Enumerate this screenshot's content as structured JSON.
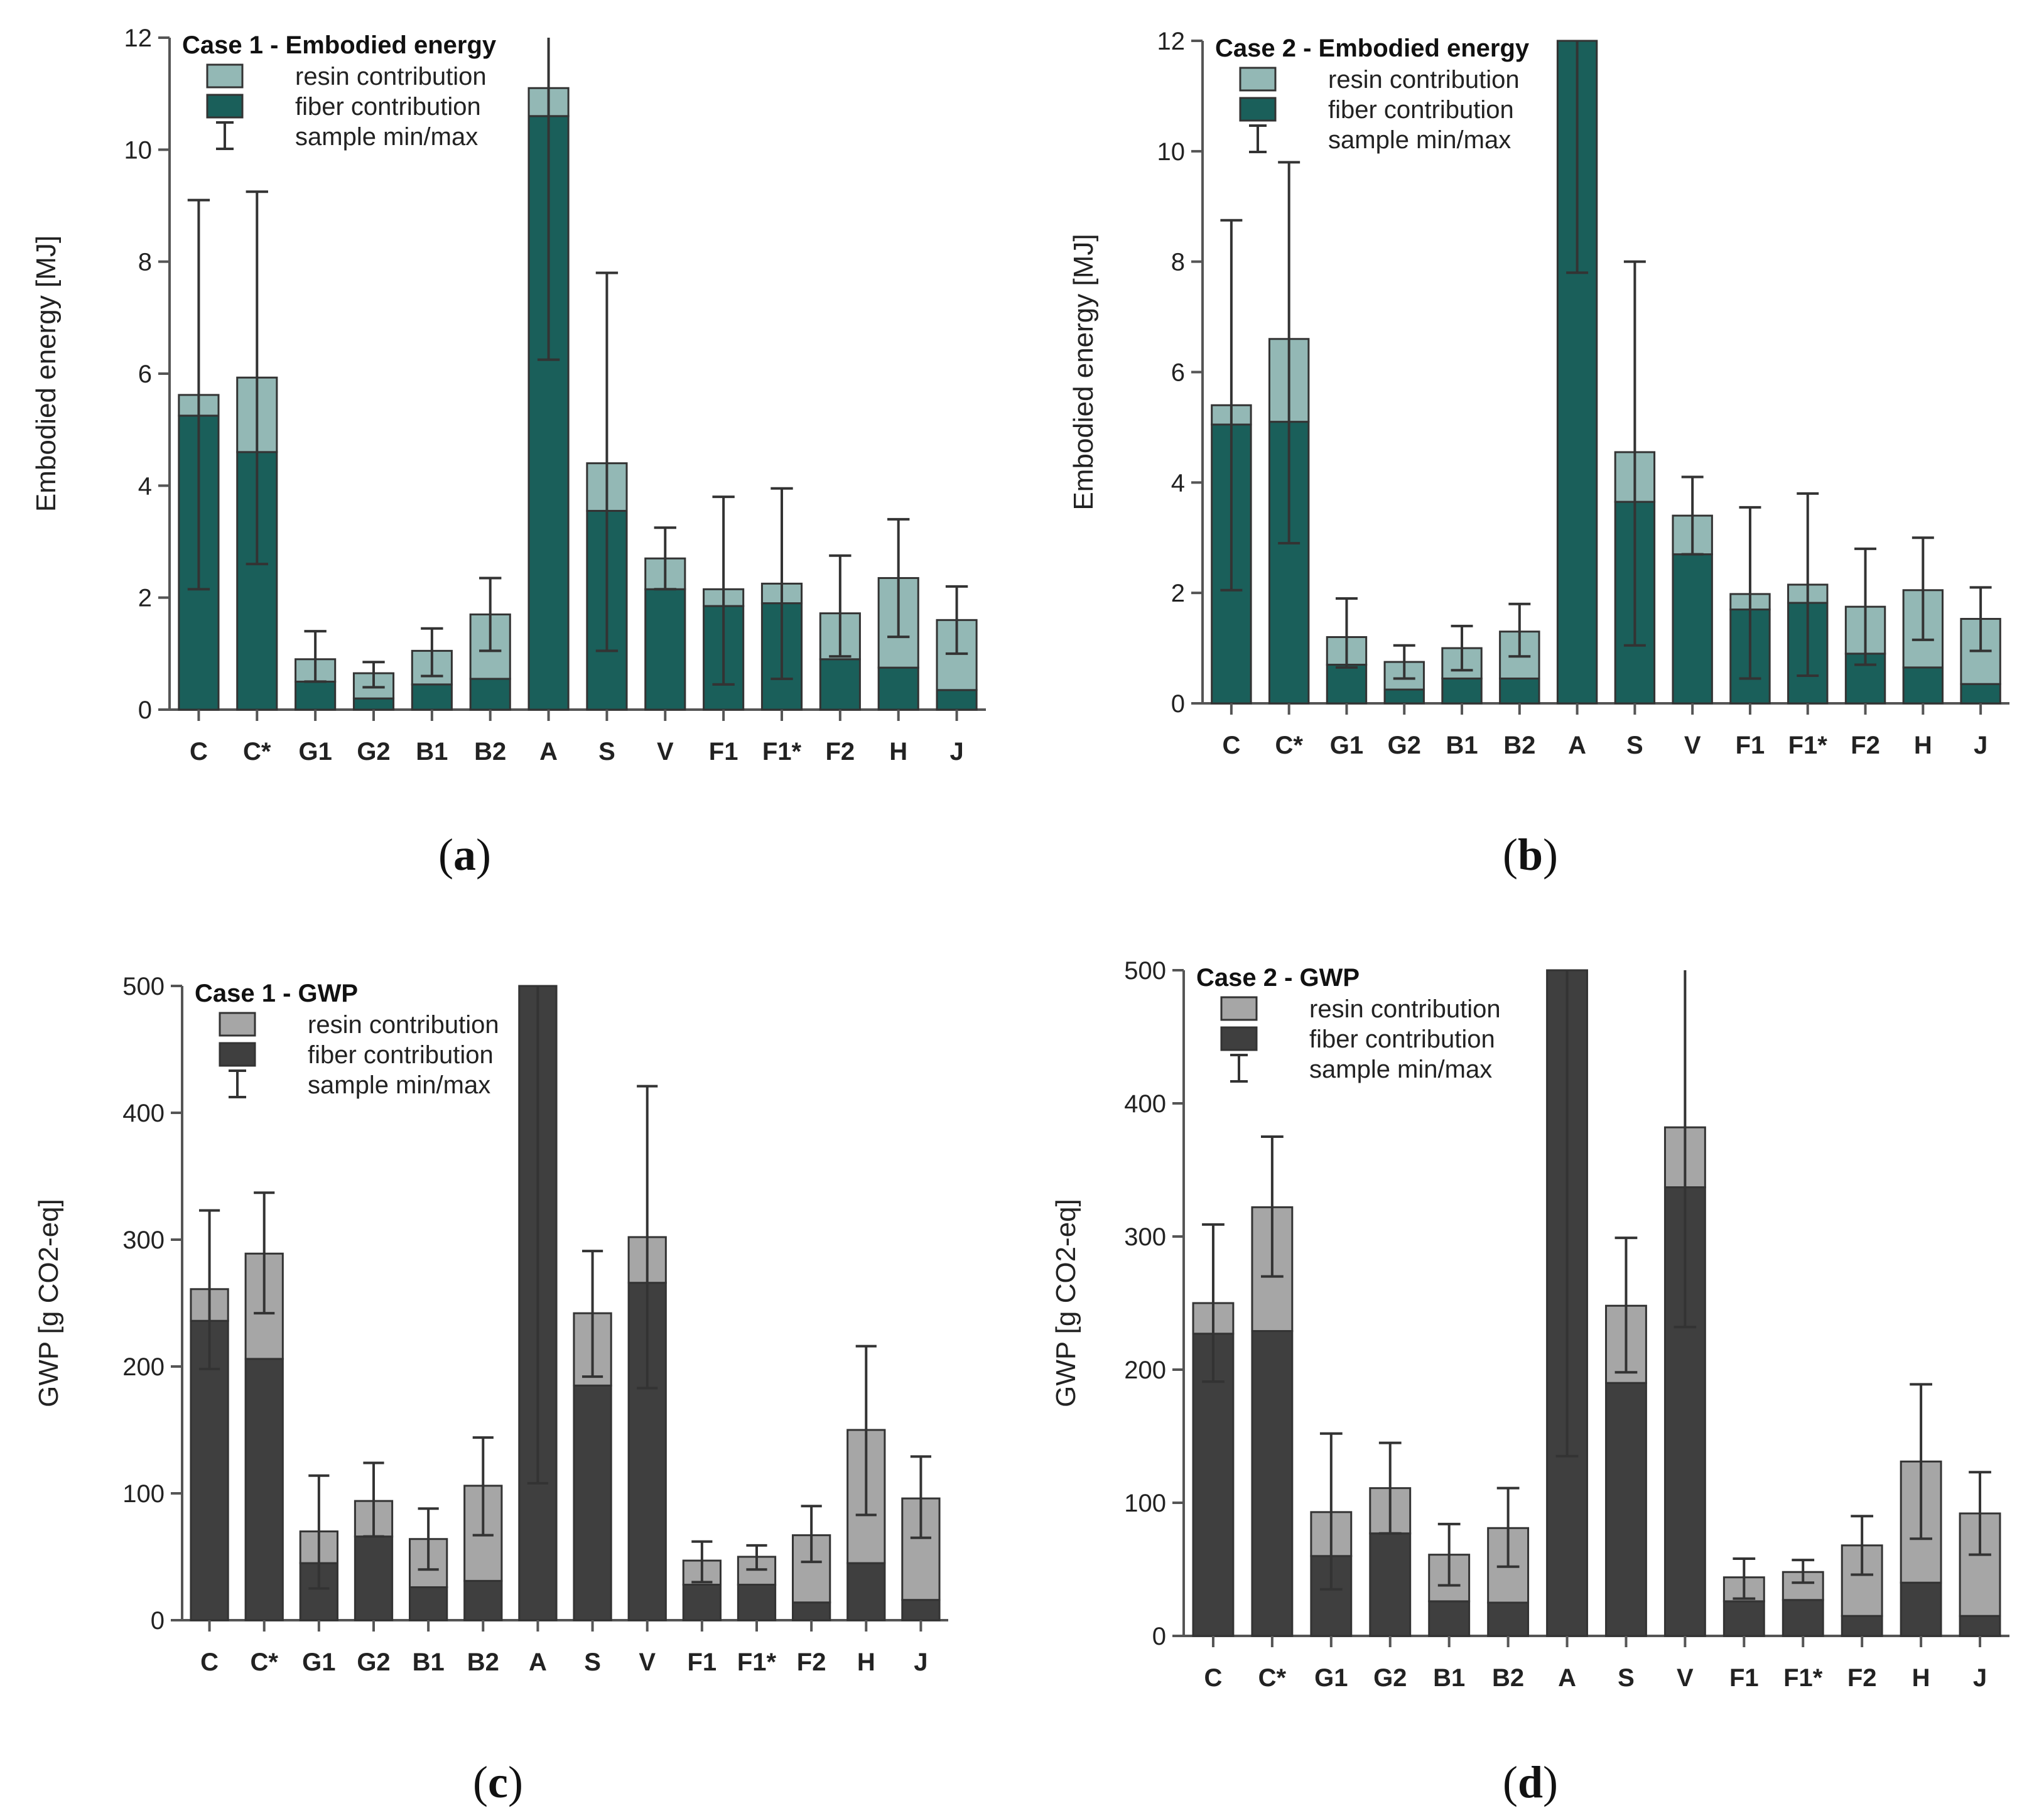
{
  "chart_data": [
    {
      "type": "bar",
      "stacked": true,
      "panel": "a",
      "legend_title": "Case 1 - Embodied energy",
      "ylabel": "Embodied energy [MJ]",
      "xlabel": "",
      "ylim": [
        0,
        12
      ],
      "yticks": [
        0,
        2,
        4,
        6,
        8,
        10,
        12
      ],
      "categories": [
        "C",
        "C*",
        "G1",
        "G2",
        "B1",
        "B2",
        "A",
        "S",
        "V",
        "F1",
        "F1*",
        "F2",
        "H",
        "J"
      ],
      "series": [
        {
          "name": "fiber contribution",
          "color": "#1a5f5a",
          "values": [
            5.25,
            4.6,
            0.5,
            0.2,
            0.45,
            0.55,
            10.6,
            3.55,
            2.15,
            1.85,
            1.9,
            0.9,
            0.75,
            0.35
          ]
        },
        {
          "name": "resin contribution",
          "color": "#93b8b5",
          "values": [
            0.37,
            1.33,
            0.4,
            0.45,
            0.6,
            1.15,
            0.5,
            0.85,
            0.55,
            0.3,
            0.35,
            0.82,
            1.6,
            1.25
          ]
        }
      ],
      "error_min": [
        2.15,
        2.6,
        0.5,
        0.4,
        0.6,
        1.05,
        6.25,
        1.05,
        2.15,
        0.45,
        0.55,
        0.95,
        1.3,
        1.0
      ],
      "error_max": [
        9.1,
        9.25,
        1.4,
        0.85,
        1.45,
        2.35,
        12.0,
        7.8,
        3.25,
        3.8,
        3.95,
        2.75,
        3.4,
        2.2
      ],
      "error_label": "sample min/max",
      "legend_position": "top-left",
      "grid": false
    },
    {
      "type": "bar",
      "stacked": true,
      "panel": "b",
      "legend_title": "Case 2 - Embodied energy",
      "ylabel": "Embodied energy [MJ]",
      "xlabel": "",
      "ylim": [
        0,
        12
      ],
      "yticks": [
        0,
        2,
        4,
        6,
        8,
        10,
        12
      ],
      "categories": [
        "C",
        "C*",
        "G1",
        "G2",
        "B1",
        "B2",
        "A",
        "S",
        "V",
        "F1",
        "F1*",
        "F2",
        "H",
        "J"
      ],
      "series": [
        {
          "name": "fiber contribution",
          "color": "#1a5f5a",
          "values": [
            5.05,
            5.1,
            0.7,
            0.25,
            0.45,
            0.45,
            12.0,
            3.65,
            2.7,
            1.7,
            1.82,
            0.9,
            0.65,
            0.35
          ]
        },
        {
          "name": "resin contribution",
          "color": "#93b8b5",
          "values": [
            0.35,
            1.5,
            0.5,
            0.5,
            0.55,
            0.85,
            0.0,
            0.9,
            0.7,
            0.28,
            0.33,
            0.85,
            1.4,
            1.18
          ]
        }
      ],
      "error_min": [
        2.05,
        2.9,
        0.65,
        0.45,
        0.6,
        0.85,
        7.8,
        1.05,
        2.7,
        0.45,
        0.5,
        0.7,
        1.15,
        0.95
      ],
      "error_max": [
        8.75,
        9.8,
        1.9,
        1.05,
        1.4,
        1.8,
        12.0,
        8.0,
        4.1,
        3.55,
        3.8,
        2.8,
        3.0,
        2.1
      ],
      "error_label": "sample min/max",
      "legend_position": "top-left",
      "grid": false
    },
    {
      "type": "bar",
      "stacked": true,
      "panel": "c",
      "legend_title": "Case 1 - GWP",
      "ylabel": "GWP [g CO2-eq]",
      "xlabel": "",
      "ylim": [
        0,
        500
      ],
      "yticks": [
        0,
        100,
        200,
        300,
        400,
        500
      ],
      "categories": [
        "C",
        "C*",
        "G1",
        "G2",
        "B1",
        "B2",
        "A",
        "S",
        "V",
        "F1",
        "F1*",
        "F2",
        "H",
        "J"
      ],
      "series": [
        {
          "name": "fiber contribution",
          "color": "#3f3f3f",
          "values": [
            236,
            206,
            45,
            66,
            26,
            31,
            500,
            185,
            266,
            28,
            28,
            14,
            45,
            16
          ]
        },
        {
          "name": "resin contribution",
          "color": "#a6a6a6",
          "values": [
            25,
            83,
            25,
            28,
            38,
            75,
            0,
            57,
            36,
            19,
            22,
            53,
            105,
            80
          ]
        }
      ],
      "error_min": [
        198,
        242,
        25,
        66,
        40,
        67,
        108,
        192,
        183,
        30,
        40,
        46,
        83,
        65
      ],
      "error_max": [
        323,
        337,
        114,
        124,
        88,
        144,
        500,
        291,
        421,
        62,
        59,
        90,
        216,
        129
      ],
      "error_label": "sample min/max",
      "legend_position": "top-left",
      "grid": false
    },
    {
      "type": "bar",
      "stacked": true,
      "panel": "d",
      "legend_title": "Case 2 - GWP",
      "ylabel": "GWP [g CO2-eq]",
      "xlabel": "",
      "ylim": [
        0,
        500
      ],
      "yticks": [
        0,
        100,
        200,
        300,
        400,
        500
      ],
      "categories": [
        "C",
        "C*",
        "G1",
        "G2",
        "B1",
        "B2",
        "A",
        "S",
        "V",
        "F1",
        "F1*",
        "F2",
        "H",
        "J"
      ],
      "series": [
        {
          "name": "fiber contribution",
          "color": "#3f3f3f",
          "values": [
            227,
            229,
            60,
            77,
            26,
            25,
            500,
            190,
            337,
            26,
            27,
            15,
            40,
            15
          ]
        },
        {
          "name": "resin contribution",
          "color": "#a6a6a6",
          "values": [
            23,
            93,
            33,
            34,
            35,
            56,
            0,
            58,
            45,
            18,
            21,
            53,
            91,
            77
          ]
        }
      ],
      "error_min": [
        191,
        270,
        35,
        77,
        38,
        52,
        135,
        198,
        232,
        28,
        40,
        46,
        73,
        61
      ],
      "error_max": [
        309,
        375,
        152,
        145,
        84,
        111,
        500,
        299,
        500,
        58,
        57,
        90,
        189,
        123
      ],
      "error_label": "sample min/max",
      "legend_position": "top-left",
      "grid": false
    }
  ],
  "panel_labels": [
    {
      "open": "(",
      "letter": "a",
      "close": ")"
    },
    {
      "open": "(",
      "letter": "b",
      "close": ")"
    },
    {
      "open": "(",
      "letter": "c",
      "close": ")"
    },
    {
      "open": "(",
      "letter": "d",
      "close": ")"
    }
  ]
}
